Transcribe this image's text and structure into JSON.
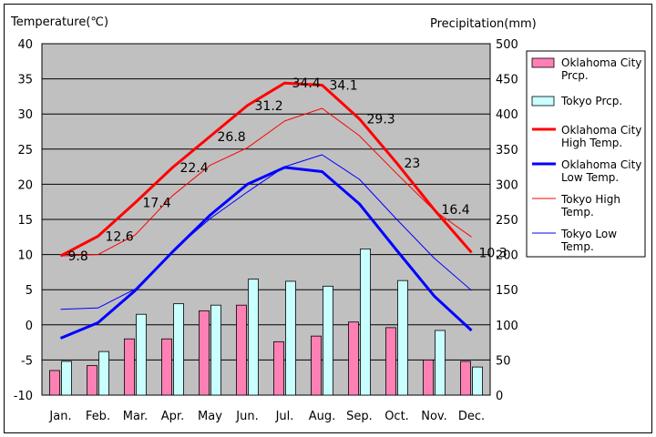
{
  "chart_data": {
    "type": "bar+line",
    "y_left_label": "Temperature(℃)",
    "y_right_label": "Precipitation(mm)",
    "y_left_range": [
      -10,
      40
    ],
    "y_left_ticks": [
      40,
      35,
      30,
      25,
      20,
      15,
      10,
      5,
      0,
      -5,
      -10
    ],
    "y_right_range": [
      0,
      500
    ],
    "y_right_ticks": [
      500,
      450,
      400,
      350,
      300,
      250,
      200,
      150,
      100,
      50,
      0
    ],
    "categories": [
      "Jan.",
      "Feb.",
      "Mar.",
      "Apr.",
      "May",
      "Jun.",
      "Jul.",
      "Aug.",
      "Sep.",
      "Oct.",
      "Nov.",
      "Dec."
    ],
    "grid": true,
    "legend_position": "right",
    "bar_series": [
      {
        "name": "Oklahoma City Prcp.",
        "legend_lines": [
          "Oklahoma City",
          "Prcp."
        ],
        "color": "#ff80b4",
        "values": [
          35,
          42,
          80,
          80,
          120,
          128,
          76,
          84,
          104,
          96,
          50,
          48
        ]
      },
      {
        "name": "Tokyo Prcp.",
        "legend_lines": [
          "Tokyo Prcp."
        ],
        "color": "#c8ffff",
        "values": [
          48,
          62,
          115,
          130,
          128,
          165,
          162,
          155,
          208,
          163,
          92,
          40
        ]
      }
    ],
    "line_series": [
      {
        "name": "Oklahoma City High Temp.",
        "legend_lines": [
          "Oklahoma City",
          "High Temp."
        ],
        "color": "#ff0000",
        "width": 3,
        "values": [
          9.8,
          12.6,
          17.4,
          22.4,
          26.8,
          31.2,
          34.4,
          34.1,
          29.3,
          23,
          16.4,
          10.3
        ],
        "data_labels": [
          "9.8",
          "12.6",
          "17.4",
          "22.4",
          "26.8",
          "31.2",
          "34.4",
          "34.1",
          "29.3",
          "23",
          "16.4",
          "10.3"
        ]
      },
      {
        "name": "Oklahoma City Low Temp.",
        "legend_lines": [
          "Oklahoma City",
          "Low Temp."
        ],
        "color": "#0000ff",
        "width": 3,
        "values": [
          -1.9,
          0.3,
          4.9,
          10.4,
          15.6,
          20.0,
          22.4,
          21.8,
          17.2,
          10.6,
          4.1,
          -0.8
        ]
      },
      {
        "name": "Tokyo High Temp.",
        "legend_lines": [
          "Tokyo High",
          "Temp."
        ],
        "color": "#ff0000",
        "width": 1,
        "values": [
          9.8,
          10.0,
          12.8,
          18.4,
          22.7,
          25.2,
          29.0,
          30.8,
          26.9,
          21.5,
          16.3,
          12.5
        ]
      },
      {
        "name": "Tokyo Low Temp.",
        "legend_lines": [
          "Tokyo Low",
          "Temp."
        ],
        "color": "#0000ff",
        "width": 1,
        "values": [
          2.2,
          2.4,
          5.1,
          10.5,
          15.1,
          18.9,
          22.5,
          24.2,
          20.7,
          15.0,
          9.5,
          4.9
        ]
      }
    ]
  }
}
